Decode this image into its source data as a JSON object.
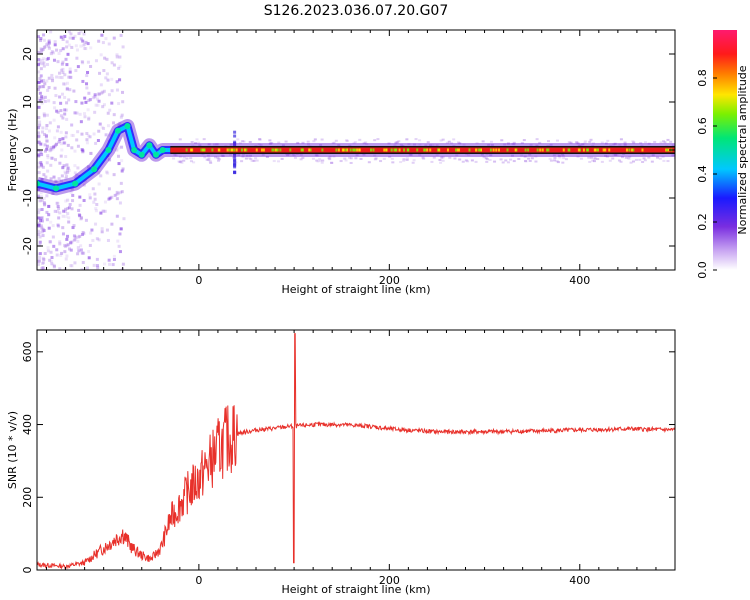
{
  "title": "S126.2023.036.07.20.G07",
  "chart_data": [
    {
      "type": "heatmap",
      "panel": "spectrogram",
      "xlabel": "Height of straight line (km)",
      "ylabel": "Frequency (Hz)",
      "xlim": [
        -170,
        500
      ],
      "ylim": [
        -25,
        25
      ],
      "xticks": [
        0,
        200,
        400
      ],
      "yticks": [
        -20,
        -10,
        0,
        10,
        20
      ],
      "colorbar": {
        "label": "Normalized spectral amplitude",
        "ticks": [
          "0.0",
          "0.2",
          "0.4",
          "0.6",
          "0.8"
        ],
        "colormap": "rainbow (violet → blue → cyan → green → yellow → red → magenta)"
      },
      "ridge": [
        {
          "x": -170,
          "y": -7
        },
        {
          "x": -150,
          "y": -8
        },
        {
          "x": -130,
          "y": -7
        },
        {
          "x": -110,
          "y": -4
        },
        {
          "x": -95,
          "y": 0
        },
        {
          "x": -85,
          "y": 4
        },
        {
          "x": -75,
          "y": 5
        },
        {
          "x": -68,
          "y": 0
        },
        {
          "x": -60,
          "y": -1
        },
        {
          "x": -52,
          "y": 1
        },
        {
          "x": -45,
          "y": -1
        },
        {
          "x": -38,
          "y": 0
        },
        {
          "x": -30,
          "y": 0
        },
        {
          "x": 500,
          "y": 0
        }
      ],
      "baseline_frequency": 0,
      "spike_x": 37
    },
    {
      "type": "line",
      "panel": "snr",
      "xlabel": "Height of straight line (km)",
      "ylabel": "SNR (10 * v/v)",
      "xlim": [
        -170,
        500
      ],
      "ylim": [
        0,
        660
      ],
      "xticks": [
        0,
        200,
        400
      ],
      "yticks": [
        0,
        200,
        400,
        600
      ],
      "series": [
        {
          "color": "#e8312b",
          "points": [
            [
              -170,
              15
            ],
            [
              -140,
              10
            ],
            [
              -120,
              20
            ],
            [
              -110,
              40
            ],
            [
              -100,
              60
            ],
            [
              -90,
              80
            ],
            [
              -80,
              100
            ],
            [
              -70,
              60
            ],
            [
              -60,
              40
            ],
            [
              -50,
              30
            ],
            [
              -40,
              60
            ],
            [
              -30,
              140
            ],
            [
              -20,
              180
            ],
            [
              -10,
              220
            ],
            [
              0,
              250
            ],
            [
              10,
              290
            ],
            [
              20,
              330
            ],
            [
              30,
              360
            ],
            [
              40,
              375
            ],
            [
              60,
              385
            ],
            [
              80,
              390
            ],
            [
              95,
              395
            ],
            [
              100,
              395
            ],
            [
              120,
              400
            ],
            [
              150,
              400
            ],
            [
              180,
              395
            ],
            [
              200,
              388
            ],
            [
              250,
              380
            ],
            [
              300,
              380
            ],
            [
              350,
              382
            ],
            [
              400,
              385
            ],
            [
              450,
              388
            ],
            [
              500,
              385
            ]
          ]
        }
      ],
      "spike": {
        "x": 100,
        "max": 650,
        "min": 20
      }
    }
  ]
}
